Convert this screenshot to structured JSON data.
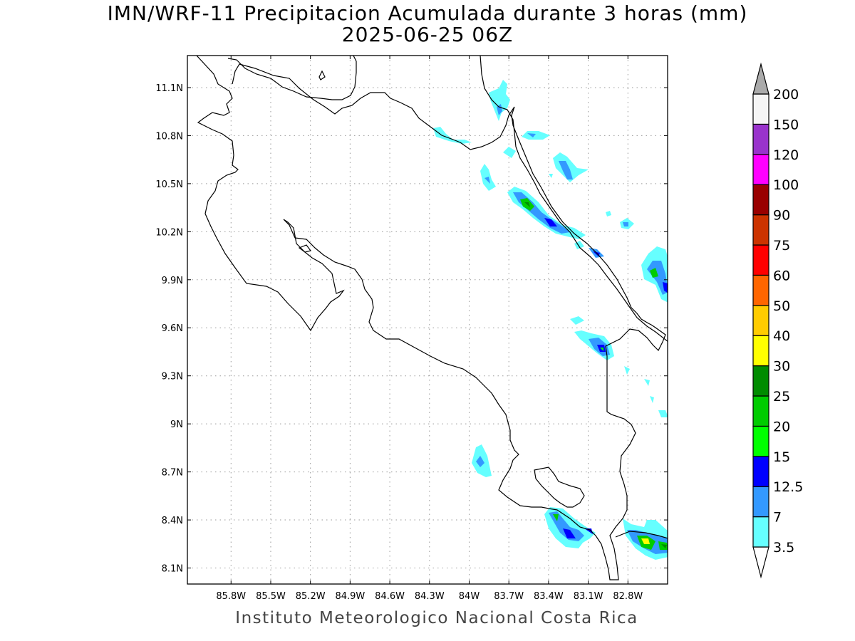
{
  "title": {
    "line1": "IMN/WRF-11 Precipitacion Acumulada durante 3 horas (mm)",
    "line2": "2025-06-25 06Z"
  },
  "footer": "Instituto Meteorologico Nacional Costa Rica",
  "map": {
    "lon_range": [
      -86.13,
      -82.5
    ],
    "lat_range": [
      8.0,
      11.3
    ],
    "lon_ticks": [
      {
        "value": -85.8,
        "label": "85.8W"
      },
      {
        "value": -85.5,
        "label": "85.5W"
      },
      {
        "value": -85.2,
        "label": "85.2W"
      },
      {
        "value": -84.9,
        "label": "84.9W"
      },
      {
        "value": -84.6,
        "label": "84.6W"
      },
      {
        "value": -84.3,
        "label": "84.3W"
      },
      {
        "value": -84.0,
        "label": "84W"
      },
      {
        "value": -83.7,
        "label": "83.7W"
      },
      {
        "value": -83.4,
        "label": "83.4W"
      },
      {
        "value": -83.1,
        "label": "83.1W"
      },
      {
        "value": -82.8,
        "label": "82.8W"
      }
    ],
    "lat_ticks": [
      {
        "value": 11.1,
        "label": "11.1N"
      },
      {
        "value": 10.8,
        "label": "10.8N"
      },
      {
        "value": 10.5,
        "label": "10.5N"
      },
      {
        "value": 10.2,
        "label": "10.2N"
      },
      {
        "value": 9.9,
        "label": "9.9N"
      },
      {
        "value": 9.6,
        "label": "9.6N"
      },
      {
        "value": 9.3,
        "label": "9.3N"
      },
      {
        "value": 9.0,
        "label": "9N"
      },
      {
        "value": 8.7,
        "label": "8.7N"
      },
      {
        "value": 8.4,
        "label": "8.4N"
      },
      {
        "value": 8.1,
        "label": "8.1N"
      }
    ],
    "grid": true
  },
  "colorbar": {
    "levels": [
      {
        "label": "3.5",
        "color": "#66ffff"
      },
      {
        "label": "7",
        "color": "#3399ff"
      },
      {
        "label": "12.5",
        "color": "#0000ff"
      },
      {
        "label": "15",
        "color": "#00ff00"
      },
      {
        "label": "20",
        "color": "#00cc00"
      },
      {
        "label": "25",
        "color": "#008c00"
      },
      {
        "label": "30",
        "color": "#ffff00"
      },
      {
        "label": "40",
        "color": "#ffcc00"
      },
      {
        "label": "50",
        "color": "#ff6600"
      },
      {
        "label": "60",
        "color": "#ff0000"
      },
      {
        "label": "75",
        "color": "#cc3300"
      },
      {
        "label": "90",
        "color": "#990000"
      },
      {
        "label": "100",
        "color": "#ff00ff"
      },
      {
        "label": "120",
        "color": "#9933cc"
      },
      {
        "label": "150",
        "color": "#f5f5f5"
      },
      {
        "label": "200",
        "color": "#aaaaaa"
      }
    ]
  }
}
